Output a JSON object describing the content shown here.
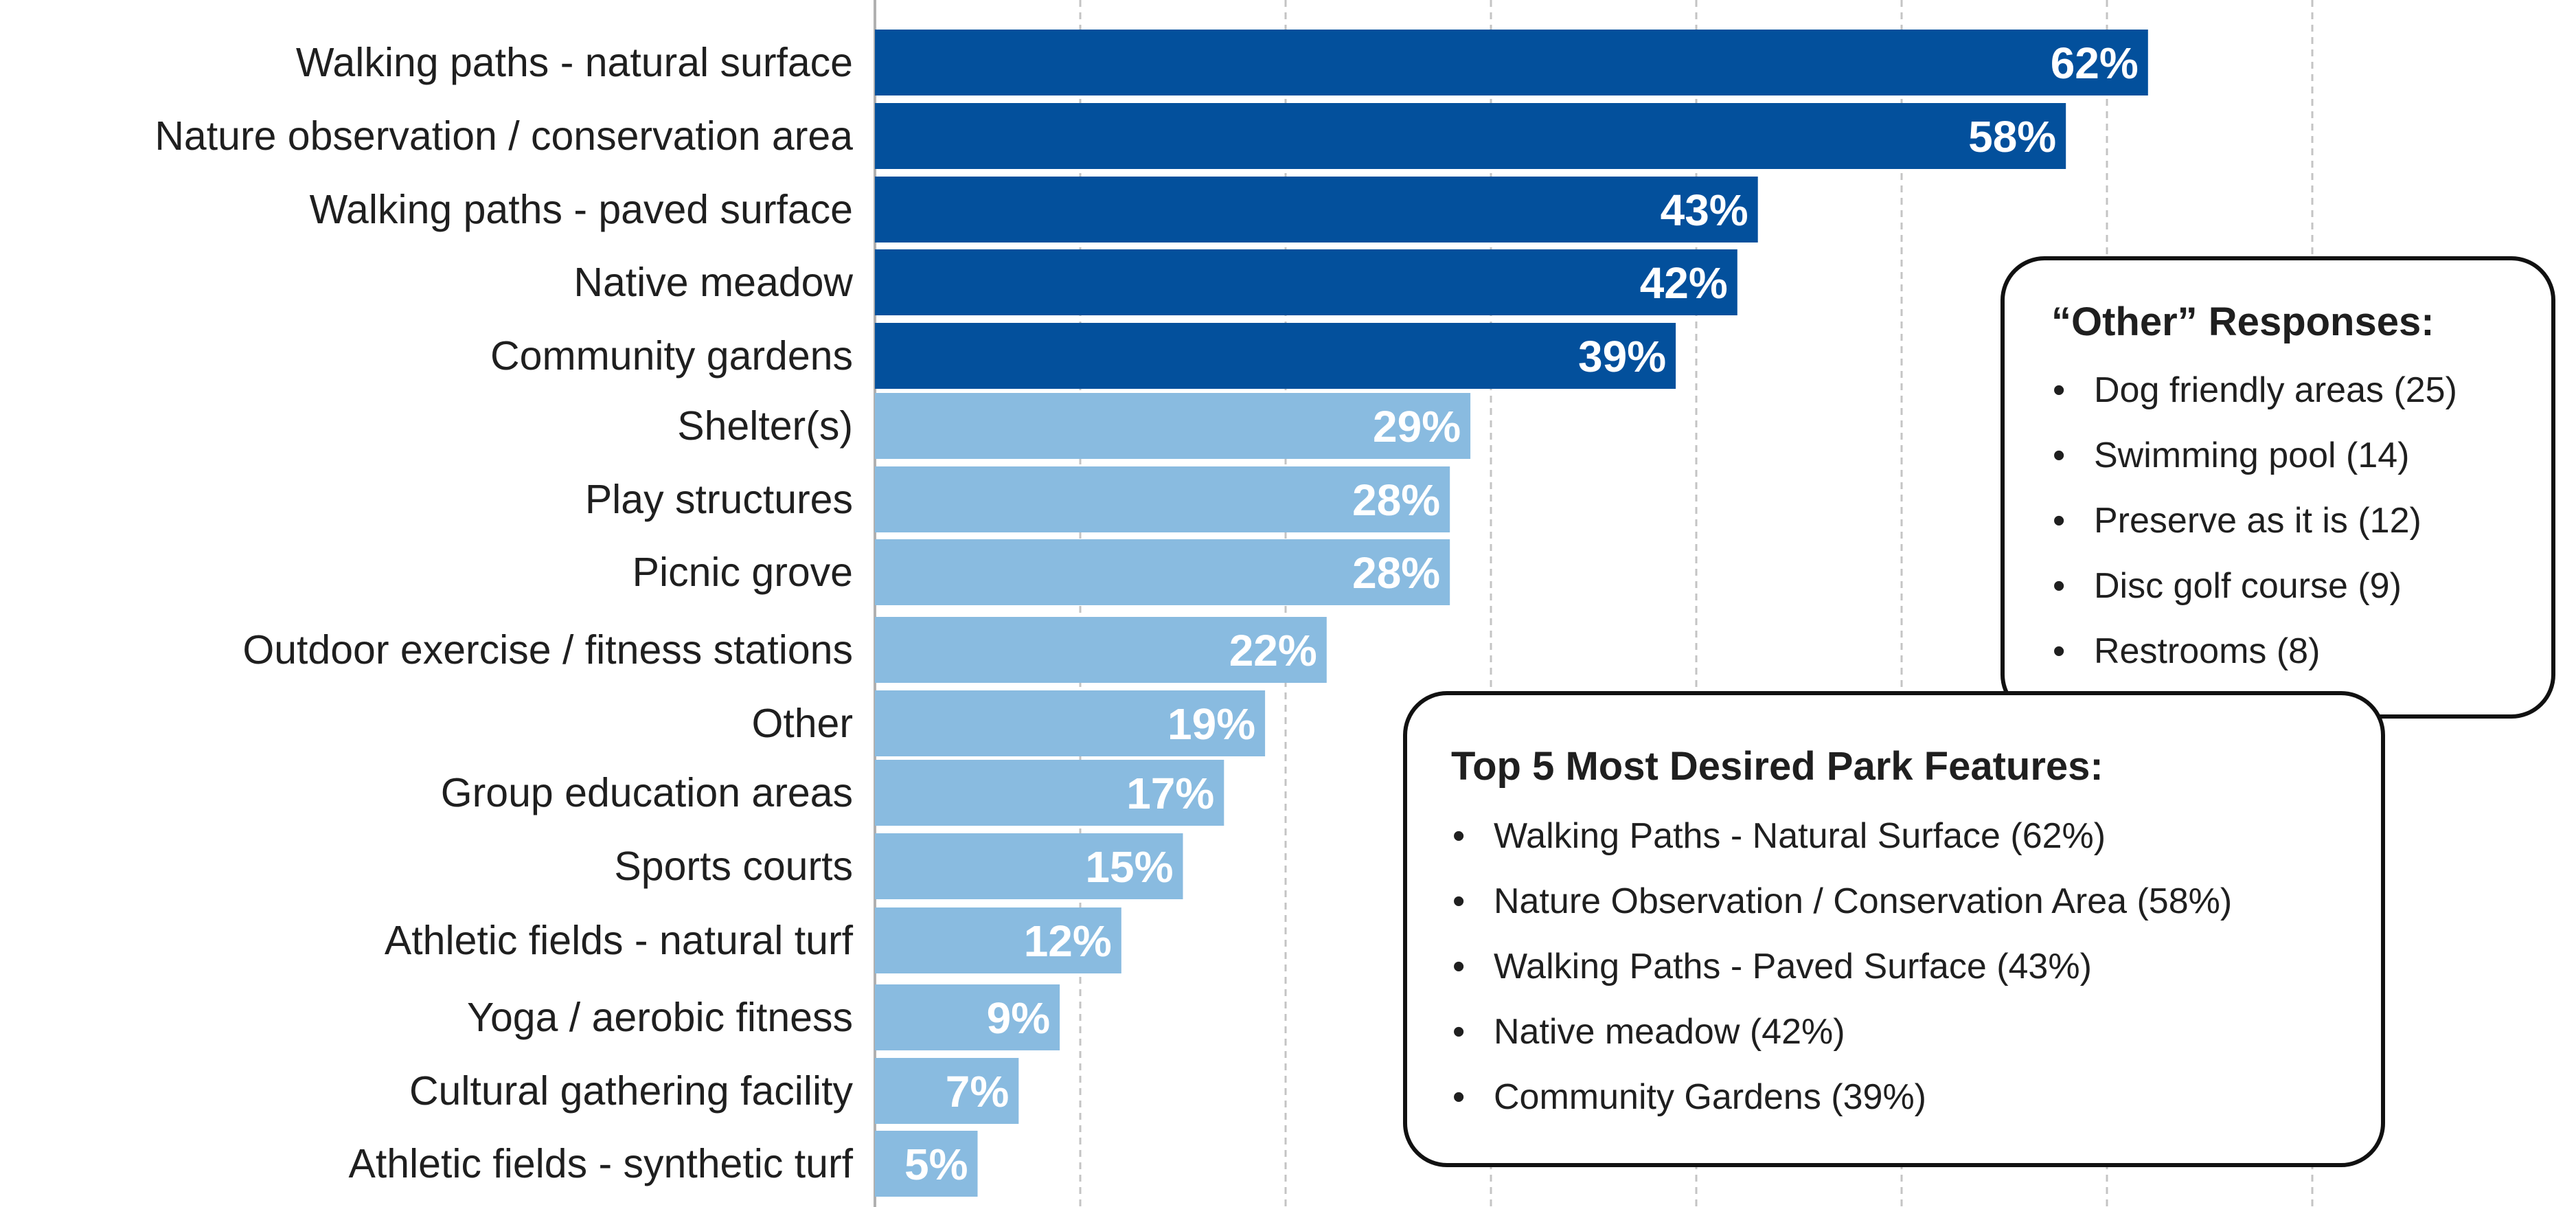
{
  "chart_data": {
    "type": "bar",
    "orientation": "horizontal",
    "categories": [
      "Walking paths - natural surface",
      "Nature observation / conservation area",
      "Walking paths - paved surface",
      "Native meadow",
      "Community gardens",
      "Shelter(s)",
      "Play structures",
      "Picnic grove",
      "Outdoor exercise / fitness stations",
      "Other",
      "Group education areas",
      "Sports courts",
      "Athletic fields - natural turf",
      "Yoga / aerobic fitness",
      "Cultural gathering facility",
      "Athletic fields - synthetic turf"
    ],
    "values": [
      62,
      58,
      43,
      42,
      39,
      29,
      28,
      28,
      22,
      19,
      17,
      15,
      12,
      9,
      7,
      5
    ],
    "value_labels": [
      "62%",
      "58%",
      "43%",
      "42%",
      "39%",
      "29%",
      "28%",
      "28%",
      "22%",
      "19%",
      "17%",
      "15%",
      "12%",
      "9%",
      "7%",
      "5%"
    ],
    "unit": "%",
    "xlim": [
      0,
      70
    ],
    "grid": "vertical dashed",
    "colors": {
      "top5": "#03509c",
      "rest": "#89bbe0",
      "grid": "#c4c4c4",
      "axis": "#b0b0b0"
    },
    "top_highlight_count": 5
  },
  "other_responses": {
    "title": "“Other” Responses:",
    "items": [
      "Dog friendly areas (25)",
      "Swimming pool (14)",
      "Preserve as it is (12)",
      "Disc golf course (9)",
      "Restrooms (8)"
    ]
  },
  "top5_features": {
    "title": "Top 5 Most Desired Park Features:",
    "items": [
      "Walking Paths - Natural Surface (62%)",
      "Nature Observation / Conservation Area (58%)",
      "Walking Paths - Paved Surface (43%)",
      "Native meadow (42%)",
      "Community Gardens (39%)"
    ]
  }
}
